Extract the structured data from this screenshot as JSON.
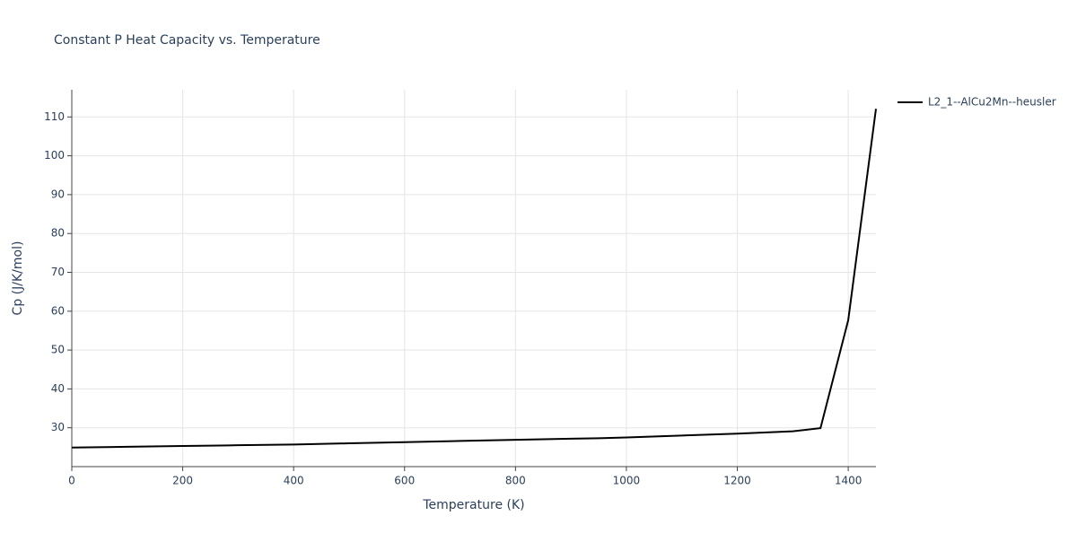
{
  "chart_data": {
    "type": "line",
    "title": "Constant P Heat Capacity vs. Temperature",
    "x_label": "Temperature (K)",
    "y_label": "Cp (J/K/mol)",
    "x": [
      0,
      100,
      200,
      300,
      400,
      500,
      600,
      700,
      800,
      900,
      950,
      1000,
      1100,
      1200,
      1300,
      1350,
      1400,
      1450
    ],
    "series": [
      {
        "name": "L2_1--AlCu2Mn--heusler",
        "color": "#000000",
        "values": [
          24.9,
          25.1,
          25.3,
          25.5,
          25.7,
          26.0,
          26.3,
          26.6,
          26.9,
          27.2,
          27.3,
          27.5,
          28.0,
          28.5,
          29.1,
          29.9,
          57.7,
          112.1
        ]
      }
    ],
    "xlim": [
      0,
      1450
    ],
    "ylim": [
      20,
      117
    ],
    "xticks": [
      0,
      200,
      400,
      600,
      800,
      1000,
      1200,
      1400
    ],
    "yticks": [
      30,
      40,
      50,
      60,
      70,
      80,
      90,
      100,
      110
    ],
    "grid": true,
    "legend": "right"
  }
}
